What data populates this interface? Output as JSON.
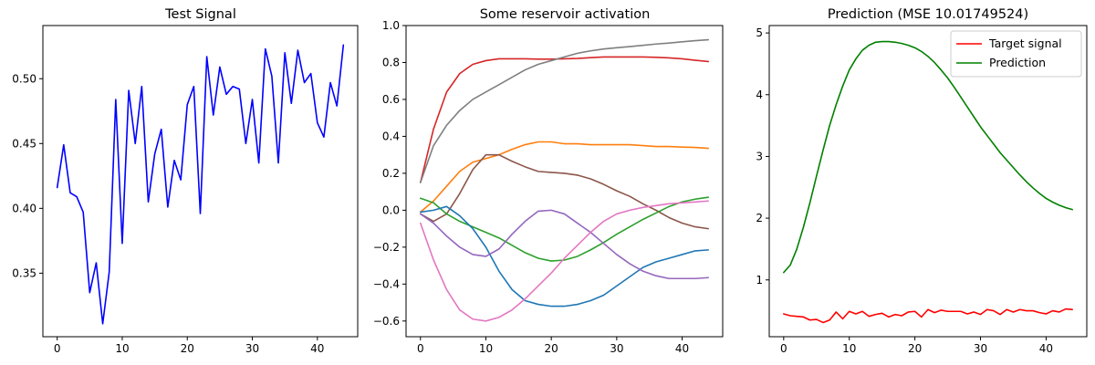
{
  "chart_data": [
    {
      "type": "line",
      "title": "Test Signal",
      "xlabel": "",
      "ylabel": "",
      "xlim": [
        -2.2,
        46.2
      ],
      "ylim": [
        0.301,
        0.541
      ],
      "xticks": [
        0,
        10,
        20,
        30,
        40
      ],
      "yticks": [
        0.35,
        0.4,
        0.45,
        0.5
      ],
      "ytick_labels": [
        "0.35",
        "0.40",
        "0.45",
        "0.50"
      ],
      "grid": false,
      "legend": null,
      "series": [
        {
          "color": "#0000ff",
          "x": [
            0,
            1,
            2,
            3,
            4,
            5,
            6,
            7,
            8,
            9,
            10,
            11,
            12,
            13,
            14,
            15,
            16,
            17,
            18,
            19,
            20,
            21,
            22,
            23,
            24,
            25,
            26,
            27,
            28,
            29,
            30,
            31,
            32,
            33,
            34,
            35,
            36,
            37,
            38,
            39,
            40,
            41,
            42,
            43,
            44
          ],
          "values": [
            0.416,
            0.449,
            0.412,
            0.409,
            0.397,
            0.335,
            0.358,
            0.311,
            0.351,
            0.484,
            0.373,
            0.491,
            0.45,
            0.494,
            0.405,
            0.442,
            0.461,
            0.401,
            0.437,
            0.422,
            0.48,
            0.494,
            0.396,
            0.517,
            0.472,
            0.509,
            0.488,
            0.494,
            0.492,
            0.45,
            0.484,
            0.435,
            0.523,
            0.502,
            0.435,
            0.52,
            0.481,
            0.522,
            0.497,
            0.504,
            0.466,
            0.455,
            0.497,
            0.479,
            0.526
          ]
        }
      ]
    },
    {
      "type": "line",
      "title": "Some reservoir activation",
      "xlabel": "",
      "ylabel": "",
      "xlim": [
        -2.2,
        46.2
      ],
      "ylim": [
        -0.685,
        1.0
      ],
      "xticks": [
        0,
        10,
        20,
        30,
        40
      ],
      "yticks": [
        -0.6,
        -0.4,
        -0.2,
        0.0,
        0.2,
        0.4,
        0.6,
        0.8,
        1.0
      ],
      "ytick_labels": [
        "−0.6",
        "−0.4",
        "−0.2",
        "0.0",
        "0.2",
        "0.4",
        "0.6",
        "0.8",
        "1.0"
      ],
      "grid": false,
      "legend": null,
      "series": [
        {
          "color": "#d62728",
          "x": [
            0,
            2,
            4,
            6,
            8,
            10,
            12,
            14,
            16,
            18,
            20,
            22,
            24,
            26,
            28,
            30,
            32,
            34,
            36,
            38,
            40,
            42,
            44
          ],
          "values": [
            0.15,
            0.44,
            0.64,
            0.74,
            0.79,
            0.81,
            0.82,
            0.82,
            0.82,
            0.818,
            0.818,
            0.82,
            0.822,
            0.826,
            0.83,
            0.83,
            0.83,
            0.83,
            0.828,
            0.825,
            0.82,
            0.812,
            0.805
          ]
        },
        {
          "color": "#7f7f7f",
          "x": [
            0,
            2,
            4,
            6,
            8,
            10,
            12,
            14,
            16,
            18,
            20,
            22,
            24,
            26,
            28,
            30,
            32,
            34,
            36,
            38,
            40,
            42,
            44
          ],
          "values": [
            0.15,
            0.35,
            0.46,
            0.54,
            0.6,
            0.64,
            0.68,
            0.72,
            0.76,
            0.79,
            0.81,
            0.83,
            0.85,
            0.863,
            0.873,
            0.88,
            0.886,
            0.893,
            0.9,
            0.905,
            0.912,
            0.918,
            0.923
          ]
        },
        {
          "color": "#ff7f0e",
          "x": [
            0,
            2,
            4,
            6,
            8,
            10,
            12,
            14,
            16,
            18,
            20,
            22,
            24,
            26,
            28,
            30,
            32,
            34,
            36,
            38,
            40,
            42,
            44
          ],
          "values": [
            -0.01,
            0.05,
            0.13,
            0.21,
            0.26,
            0.28,
            0.3,
            0.33,
            0.355,
            0.37,
            0.37,
            0.36,
            0.36,
            0.355,
            0.355,
            0.355,
            0.355,
            0.35,
            0.345,
            0.345,
            0.342,
            0.34,
            0.335
          ]
        },
        {
          "color": "#8c564b",
          "x": [
            0,
            2,
            4,
            6,
            8,
            10,
            12,
            14,
            16,
            18,
            20,
            22,
            24,
            26,
            28,
            30,
            32,
            34,
            36,
            38,
            40,
            42,
            44
          ],
          "values": [
            -0.02,
            -0.06,
            -0.02,
            0.09,
            0.22,
            0.3,
            0.3,
            0.265,
            0.235,
            0.21,
            0.205,
            0.2,
            0.19,
            0.17,
            0.14,
            0.105,
            0.075,
            0.035,
            0.0,
            -0.04,
            -0.07,
            -0.09,
            -0.1
          ]
        },
        {
          "color": "#2ca02c",
          "x": [
            0,
            2,
            4,
            6,
            8,
            10,
            12,
            14,
            16,
            18,
            20,
            22,
            24,
            26,
            28,
            30,
            32,
            34,
            36,
            38,
            40,
            42,
            44
          ],
          "values": [
            0.065,
            0.04,
            -0.02,
            -0.06,
            -0.09,
            -0.12,
            -0.15,
            -0.19,
            -0.23,
            -0.26,
            -0.275,
            -0.27,
            -0.25,
            -0.215,
            -0.175,
            -0.13,
            -0.09,
            -0.05,
            -0.015,
            0.02,
            0.045,
            0.06,
            0.07
          ]
        },
        {
          "color": "#1f77b4",
          "x": [
            0,
            2,
            4,
            6,
            8,
            10,
            12,
            14,
            16,
            18,
            20,
            22,
            24,
            26,
            28,
            30,
            32,
            34,
            36,
            38,
            40,
            42,
            44
          ],
          "values": [
            -0.01,
            0.0,
            0.02,
            -0.03,
            -0.1,
            -0.2,
            -0.33,
            -0.43,
            -0.49,
            -0.51,
            -0.52,
            -0.52,
            -0.51,
            -0.49,
            -0.46,
            -0.41,
            -0.36,
            -0.31,
            -0.28,
            -0.26,
            -0.24,
            -0.22,
            -0.215
          ]
        },
        {
          "color": "#9467bd",
          "x": [
            0,
            2,
            4,
            6,
            8,
            10,
            12,
            14,
            16,
            18,
            20,
            22,
            24,
            26,
            28,
            30,
            32,
            34,
            36,
            38,
            40,
            42,
            44
          ],
          "values": [
            -0.02,
            -0.07,
            -0.14,
            -0.2,
            -0.24,
            -0.25,
            -0.21,
            -0.13,
            -0.06,
            -0.005,
            0.0,
            -0.02,
            -0.07,
            -0.12,
            -0.18,
            -0.24,
            -0.29,
            -0.33,
            -0.355,
            -0.37,
            -0.37,
            -0.37,
            -0.365
          ]
        },
        {
          "color": "#e377c2",
          "x": [
            0,
            2,
            4,
            6,
            8,
            10,
            12,
            14,
            16,
            18,
            20,
            22,
            24,
            26,
            28,
            30,
            32,
            34,
            36,
            38,
            40,
            42,
            44
          ],
          "values": [
            -0.07,
            -0.27,
            -0.43,
            -0.54,
            -0.59,
            -0.6,
            -0.58,
            -0.54,
            -0.48,
            -0.41,
            -0.34,
            -0.26,
            -0.19,
            -0.12,
            -0.06,
            -0.02,
            0.0,
            0.015,
            0.025,
            0.035,
            0.04,
            0.045,
            0.05
          ]
        }
      ]
    },
    {
      "type": "line",
      "title": "Prediction (MSE 10.01749524)",
      "xlabel": "",
      "ylabel": "",
      "xlim": [
        -2.2,
        46.2
      ],
      "ylim": [
        0.08,
        5.12
      ],
      "xticks": [
        0,
        10,
        20,
        30,
        40
      ],
      "yticks": [
        1,
        2,
        3,
        4,
        5
      ],
      "ytick_labels": [
        "1",
        "2",
        "3",
        "4",
        "5"
      ],
      "grid": false,
      "legend": "upper right",
      "series": [
        {
          "name": "Target signal",
          "color": "#ff0000",
          "x": [
            0,
            1,
            2,
            3,
            4,
            5,
            6,
            7,
            8,
            9,
            10,
            11,
            12,
            13,
            14,
            15,
            16,
            17,
            18,
            19,
            20,
            21,
            22,
            23,
            24,
            25,
            26,
            27,
            28,
            29,
            30,
            31,
            32,
            33,
            34,
            35,
            36,
            37,
            38,
            39,
            40,
            41,
            42,
            43,
            44
          ],
          "values": [
            0.45,
            0.42,
            0.41,
            0.4,
            0.35,
            0.36,
            0.31,
            0.35,
            0.48,
            0.37,
            0.49,
            0.45,
            0.49,
            0.41,
            0.44,
            0.46,
            0.4,
            0.44,
            0.42,
            0.48,
            0.49,
            0.4,
            0.52,
            0.47,
            0.51,
            0.49,
            0.49,
            0.49,
            0.45,
            0.48,
            0.44,
            0.52,
            0.5,
            0.44,
            0.52,
            0.48,
            0.52,
            0.5,
            0.5,
            0.47,
            0.45,
            0.5,
            0.48,
            0.53,
            0.52
          ]
        },
        {
          "name": "Prediction",
          "color": "#008000",
          "x": [
            0,
            1,
            2,
            3,
            4,
            5,
            6,
            7,
            8,
            9,
            10,
            11,
            12,
            13,
            14,
            15,
            16,
            17,
            18,
            19,
            20,
            21,
            22,
            23,
            24,
            25,
            26,
            27,
            28,
            29,
            30,
            31,
            32,
            33,
            34,
            35,
            36,
            37,
            38,
            39,
            40,
            41,
            42,
            43,
            44
          ],
          "values": [
            1.12,
            1.24,
            1.5,
            1.85,
            2.25,
            2.68,
            3.1,
            3.5,
            3.84,
            4.14,
            4.4,
            4.58,
            4.72,
            4.8,
            4.85,
            4.86,
            4.86,
            4.85,
            4.83,
            4.8,
            4.76,
            4.7,
            4.62,
            4.52,
            4.4,
            4.27,
            4.12,
            3.96,
            3.8,
            3.64,
            3.48,
            3.34,
            3.2,
            3.06,
            2.94,
            2.82,
            2.7,
            2.59,
            2.49,
            2.4,
            2.32,
            2.26,
            2.21,
            2.17,
            2.14
          ]
        }
      ]
    }
  ]
}
